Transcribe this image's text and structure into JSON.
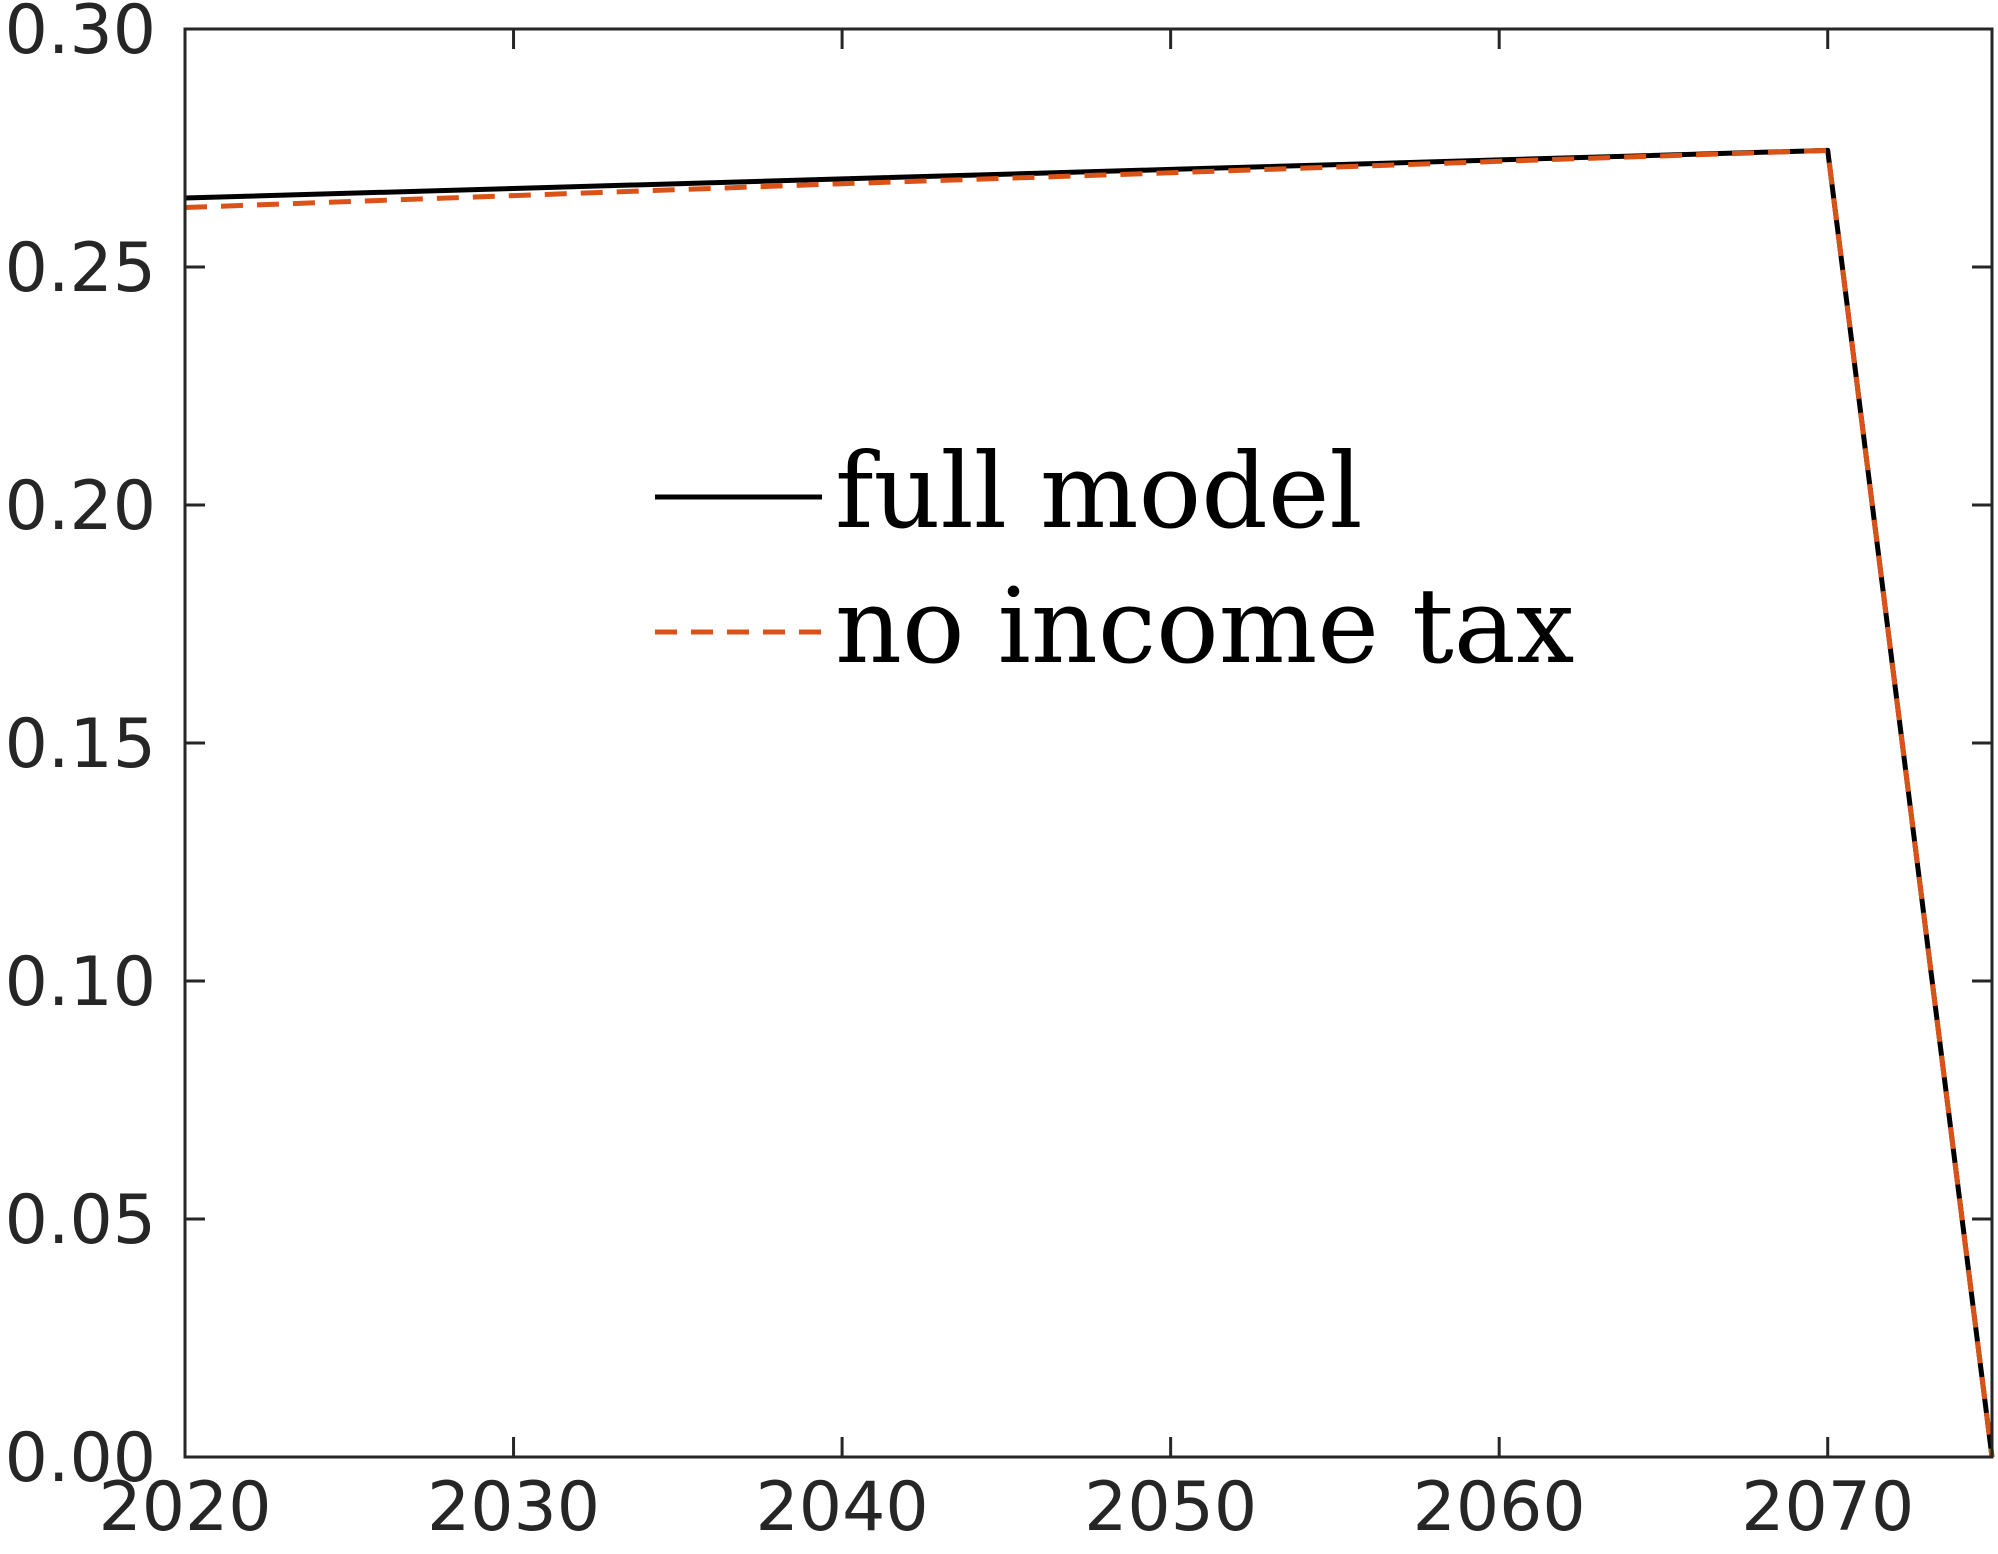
{
  "chart_data": {
    "type": "line",
    "title": "",
    "xlabel": "",
    "ylabel": "",
    "xlim": [
      2020,
      2075
    ],
    "ylim": [
      0,
      0.3
    ],
    "xticks": [
      2020,
      2030,
      2040,
      2050,
      2060,
      2070
    ],
    "yticks": [
      0.0,
      0.05,
      0.1,
      0.15,
      0.2,
      0.25,
      0.3
    ],
    "xtick_labels": [
      "2020",
      "2030",
      "2040",
      "2050",
      "2060",
      "2070"
    ],
    "ytick_labels": [
      "0.00",
      "0.05",
      "0.10",
      "0.15",
      "0.20",
      "0.25",
      "0.30"
    ],
    "grid": false,
    "legend_position": "upper-center",
    "series": [
      {
        "name": "full model",
        "color": "#000000",
        "style": "solid",
        "points": [
          [
            2020,
            0.2645
          ],
          [
            2030,
            0.2665
          ],
          [
            2040,
            0.2685
          ],
          [
            2050,
            0.2705
          ],
          [
            2060,
            0.2725
          ],
          [
            2070,
            0.2745
          ],
          [
            2075,
            0.0
          ]
        ]
      },
      {
        "name": "no income tax",
        "color": "#D95319",
        "style": "dashed",
        "points": [
          [
            2020,
            0.2625
          ],
          [
            2030,
            0.265
          ],
          [
            2040,
            0.2675
          ],
          [
            2050,
            0.2698
          ],
          [
            2060,
            0.2722
          ],
          [
            2070,
            0.2745
          ],
          [
            2075,
            0.0
          ]
        ]
      }
    ]
  }
}
